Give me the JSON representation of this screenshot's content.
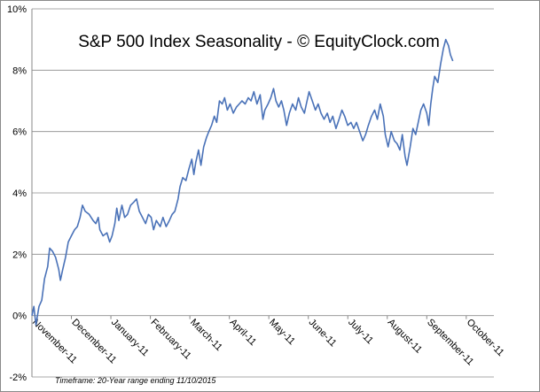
{
  "chart_data": {
    "type": "line",
    "title": "S&P 500 Index Seasonality - © EquityClock.com",
    "footnote": "Timeframe: 20-Year range ending 11/10/2015",
    "xlabel": "",
    "ylabel": "",
    "ylim": [
      -2,
      10
    ],
    "y_ticks": [
      "-2%",
      "0%",
      "2%",
      "4%",
      "6%",
      "8%",
      "10%"
    ],
    "y_tick_values": [
      -2,
      0,
      2,
      4,
      6,
      8,
      10
    ],
    "grid": true,
    "legend": "none",
    "line_color": "#4a72b8",
    "categories": [
      "November-11",
      "December-11",
      "January-11",
      "February-11",
      "March-11",
      "April-11",
      "May-11",
      "June-11",
      "July-11",
      "August-11",
      "September-11",
      "October-11"
    ],
    "series": [
      {
        "points": [
          [
            0.0,
            0.0
          ],
          [
            0.05,
            0.3
          ],
          [
            0.1,
            -0.3
          ],
          [
            0.18,
            0.3
          ],
          [
            0.25,
            0.5
          ],
          [
            0.32,
            1.2
          ],
          [
            0.4,
            1.6
          ],
          [
            0.45,
            2.2
          ],
          [
            0.52,
            2.1
          ],
          [
            0.6,
            1.9
          ],
          [
            0.68,
            1.5
          ],
          [
            0.72,
            1.15
          ],
          [
            0.78,
            1.5
          ],
          [
            0.85,
            1.9
          ],
          [
            0.92,
            2.4
          ],
          [
            1.0,
            2.6
          ],
          [
            1.08,
            2.8
          ],
          [
            1.15,
            2.9
          ],
          [
            1.22,
            3.2
          ],
          [
            1.28,
            3.6
          ],
          [
            1.35,
            3.4
          ],
          [
            1.45,
            3.3
          ],
          [
            1.55,
            3.1
          ],
          [
            1.62,
            3.0
          ],
          [
            1.68,
            3.2
          ],
          [
            1.72,
            2.8
          ],
          [
            1.8,
            2.6
          ],
          [
            1.9,
            2.7
          ],
          [
            1.97,
            2.4
          ],
          [
            2.03,
            2.6
          ],
          [
            2.1,
            3.0
          ],
          [
            2.15,
            3.5
          ],
          [
            2.2,
            3.1
          ],
          [
            2.28,
            3.6
          ],
          [
            2.35,
            3.2
          ],
          [
            2.42,
            3.3
          ],
          [
            2.5,
            3.6
          ],
          [
            2.58,
            3.7
          ],
          [
            2.65,
            3.8
          ],
          [
            2.72,
            3.4
          ],
          [
            2.8,
            3.2
          ],
          [
            2.88,
            3.0
          ],
          [
            2.95,
            3.3
          ],
          [
            3.02,
            3.2
          ],
          [
            3.08,
            2.8
          ],
          [
            3.15,
            3.1
          ],
          [
            3.25,
            2.9
          ],
          [
            3.32,
            3.2
          ],
          [
            3.4,
            2.9
          ],
          [
            3.48,
            3.1
          ],
          [
            3.55,
            3.3
          ],
          [
            3.62,
            3.4
          ],
          [
            3.7,
            3.8
          ],
          [
            3.75,
            4.2
          ],
          [
            3.82,
            4.5
          ],
          [
            3.9,
            4.4
          ],
          [
            3.98,
            4.8
          ],
          [
            4.05,
            5.1
          ],
          [
            4.1,
            4.6
          ],
          [
            4.15,
            5.0
          ],
          [
            4.22,
            5.4
          ],
          [
            4.28,
            4.9
          ],
          [
            4.35,
            5.5
          ],
          [
            4.42,
            5.8
          ],
          [
            4.48,
            6.0
          ],
          [
            4.55,
            6.2
          ],
          [
            4.62,
            6.5
          ],
          [
            4.68,
            6.3
          ],
          [
            4.75,
            7.0
          ],
          [
            4.82,
            6.9
          ],
          [
            4.88,
            7.1
          ],
          [
            4.95,
            6.7
          ],
          [
            5.02,
            6.9
          ],
          [
            5.1,
            6.6
          ],
          [
            5.18,
            6.8
          ],
          [
            5.25,
            6.9
          ],
          [
            5.32,
            7.0
          ],
          [
            5.4,
            6.9
          ],
          [
            5.48,
            7.1
          ],
          [
            5.55,
            7.0
          ],
          [
            5.62,
            7.3
          ],
          [
            5.7,
            6.9
          ],
          [
            5.78,
            7.2
          ],
          [
            5.85,
            6.4
          ],
          [
            5.9,
            6.7
          ],
          [
            5.98,
            6.9
          ],
          [
            6.05,
            7.1
          ],
          [
            6.12,
            7.4
          ],
          [
            6.18,
            7.0
          ],
          [
            6.25,
            6.8
          ],
          [
            6.32,
            7.0
          ],
          [
            6.38,
            6.7
          ],
          [
            6.45,
            6.2
          ],
          [
            6.52,
            6.6
          ],
          [
            6.6,
            6.9
          ],
          [
            6.68,
            6.7
          ],
          [
            6.75,
            7.1
          ],
          [
            6.82,
            6.8
          ],
          [
            6.9,
            6.6
          ],
          [
            6.95,
            6.9
          ],
          [
            7.02,
            7.3
          ],
          [
            7.1,
            7.0
          ],
          [
            7.18,
            6.7
          ],
          [
            7.25,
            6.9
          ],
          [
            7.32,
            6.6
          ],
          [
            7.4,
            6.4
          ],
          [
            7.48,
            6.6
          ],
          [
            7.55,
            6.3
          ],
          [
            7.62,
            6.5
          ],
          [
            7.7,
            6.1
          ],
          [
            7.78,
            6.4
          ],
          [
            7.85,
            6.7
          ],
          [
            7.92,
            6.5
          ],
          [
            8.0,
            6.2
          ],
          [
            8.08,
            6.3
          ],
          [
            8.15,
            6.1
          ],
          [
            8.22,
            6.3
          ],
          [
            8.3,
            6.0
          ],
          [
            8.38,
            5.7
          ],
          [
            8.45,
            5.9
          ],
          [
            8.52,
            6.2
          ],
          [
            8.6,
            6.5
          ],
          [
            8.68,
            6.7
          ],
          [
            8.75,
            6.4
          ],
          [
            8.82,
            6.9
          ],
          [
            8.9,
            6.5
          ],
          [
            8.95,
            5.9
          ],
          [
            9.02,
            5.5
          ],
          [
            9.1,
            6.0
          ],
          [
            9.18,
            5.7
          ],
          [
            9.25,
            5.6
          ],
          [
            9.32,
            5.4
          ],
          [
            9.38,
            5.9
          ],
          [
            9.45,
            5.2
          ],
          [
            9.5,
            4.9
          ],
          [
            9.58,
            5.5
          ],
          [
            9.65,
            6.1
          ],
          [
            9.72,
            5.9
          ],
          [
            9.8,
            6.4
          ],
          [
            9.85,
            6.7
          ],
          [
            9.92,
            6.9
          ],
          [
            10.0,
            6.6
          ],
          [
            10.05,
            6.2
          ],
          [
            10.1,
            6.9
          ],
          [
            10.15,
            7.4
          ],
          [
            10.2,
            7.8
          ],
          [
            10.28,
            7.6
          ],
          [
            10.35,
            8.2
          ],
          [
            10.42,
            8.7
          ],
          [
            10.48,
            9.0
          ],
          [
            10.55,
            8.8
          ],
          [
            10.6,
            8.5
          ],
          [
            10.66,
            8.3
          ]
        ]
      }
    ]
  }
}
